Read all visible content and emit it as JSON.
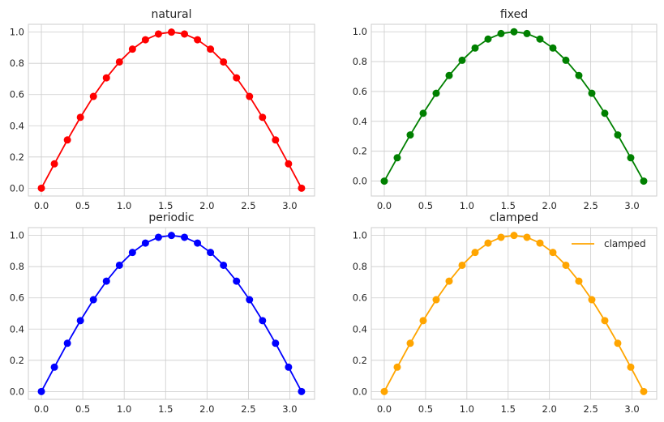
{
  "chart_data": [
    {
      "type": "line",
      "title": "natural",
      "color": "#ff0000",
      "x": [
        0.0,
        0.1571,
        0.3142,
        0.4712,
        0.6283,
        0.7854,
        0.9425,
        1.0996,
        1.2566,
        1.4137,
        1.5708,
        1.7279,
        1.885,
        2.042,
        2.1991,
        2.3562,
        2.5133,
        2.6704,
        2.8274,
        2.9845,
        3.1416
      ],
      "y": [
        0.0,
        0.156,
        0.309,
        0.454,
        0.588,
        0.707,
        0.809,
        0.891,
        0.951,
        0.988,
        1.0,
        0.988,
        0.951,
        0.891,
        0.809,
        0.707,
        0.588,
        0.454,
        0.309,
        0.156,
        0.0
      ],
      "xticks": [
        "0.0",
        "0.5",
        "1.0",
        "1.5",
        "2.0",
        "2.5",
        "3.0"
      ],
      "yticks": [
        "0.0",
        "0.2",
        "0.4",
        "0.6",
        "0.8",
        "1.0"
      ],
      "xlim": [
        -0.157,
        3.299
      ],
      "ylim": [
        -0.05,
        1.05
      ],
      "grid": true,
      "legend": null
    },
    {
      "type": "line",
      "title": "fixed",
      "color": "#008000",
      "x": [
        0.0,
        0.1571,
        0.3142,
        0.4712,
        0.6283,
        0.7854,
        0.9425,
        1.0996,
        1.2566,
        1.4137,
        1.5708,
        1.7279,
        1.885,
        2.042,
        2.1991,
        2.3562,
        2.5133,
        2.6704,
        2.8274,
        2.9845,
        3.1416
      ],
      "y": [
        0.0,
        0.156,
        0.309,
        0.454,
        0.588,
        0.707,
        0.809,
        0.891,
        0.951,
        0.988,
        1.0,
        0.988,
        0.951,
        0.891,
        0.809,
        0.707,
        0.588,
        0.454,
        0.309,
        0.156,
        0.0
      ],
      "xticks": [
        "0.0",
        "0.5",
        "1.0",
        "1.5",
        "2.0",
        "2.5",
        "3.0"
      ],
      "yticks": [
        "0.0",
        "0.2",
        "0.4",
        "0.6",
        "0.8",
        "1.0"
      ],
      "xlim": [
        -0.157,
        3.299
      ],
      "ylim": [
        -0.1,
        1.05
      ],
      "grid": true,
      "legend": null
    },
    {
      "type": "line",
      "title": "periodic",
      "color": "#0000ff",
      "x": [
        0.0,
        0.1571,
        0.3142,
        0.4712,
        0.6283,
        0.7854,
        0.9425,
        1.0996,
        1.2566,
        1.4137,
        1.5708,
        1.7279,
        1.885,
        2.042,
        2.1991,
        2.3562,
        2.5133,
        2.6704,
        2.8274,
        2.9845,
        3.1416
      ],
      "y": [
        0.0,
        0.156,
        0.309,
        0.454,
        0.588,
        0.707,
        0.809,
        0.891,
        0.951,
        0.988,
        1.0,
        0.988,
        0.951,
        0.891,
        0.809,
        0.707,
        0.588,
        0.454,
        0.309,
        0.156,
        0.0
      ],
      "xticks": [
        "0.0",
        "0.5",
        "1.0",
        "1.5",
        "2.0",
        "2.5",
        "3.0"
      ],
      "yticks": [
        "0.0",
        "0.2",
        "0.4",
        "0.6",
        "0.8",
        "1.0"
      ],
      "xlim": [
        -0.157,
        3.299
      ],
      "ylim": [
        -0.05,
        1.05
      ],
      "grid": true,
      "legend": null
    },
    {
      "type": "line",
      "title": "clamped",
      "color": "#ffa500",
      "x": [
        0.0,
        0.1571,
        0.3142,
        0.4712,
        0.6283,
        0.7854,
        0.9425,
        1.0996,
        1.2566,
        1.4137,
        1.5708,
        1.7279,
        1.885,
        2.042,
        2.1991,
        2.3562,
        2.5133,
        2.6704,
        2.8274,
        2.9845,
        3.1416
      ],
      "y": [
        0.0,
        0.156,
        0.309,
        0.454,
        0.588,
        0.707,
        0.809,
        0.891,
        0.951,
        0.988,
        1.0,
        0.988,
        0.951,
        0.891,
        0.809,
        0.707,
        0.588,
        0.454,
        0.309,
        0.156,
        0.0
      ],
      "xticks": [
        "0.0",
        "0.5",
        "1.0",
        "1.5",
        "2.0",
        "2.5",
        "3.0"
      ],
      "yticks": [
        "0.0",
        "0.2",
        "0.4",
        "0.6",
        "0.8",
        "1.0"
      ],
      "xlim": [
        -0.157,
        3.299
      ],
      "ylim": [
        -0.05,
        1.05
      ],
      "grid": true,
      "legend": {
        "label": "clamped",
        "location": "upper right"
      }
    }
  ]
}
